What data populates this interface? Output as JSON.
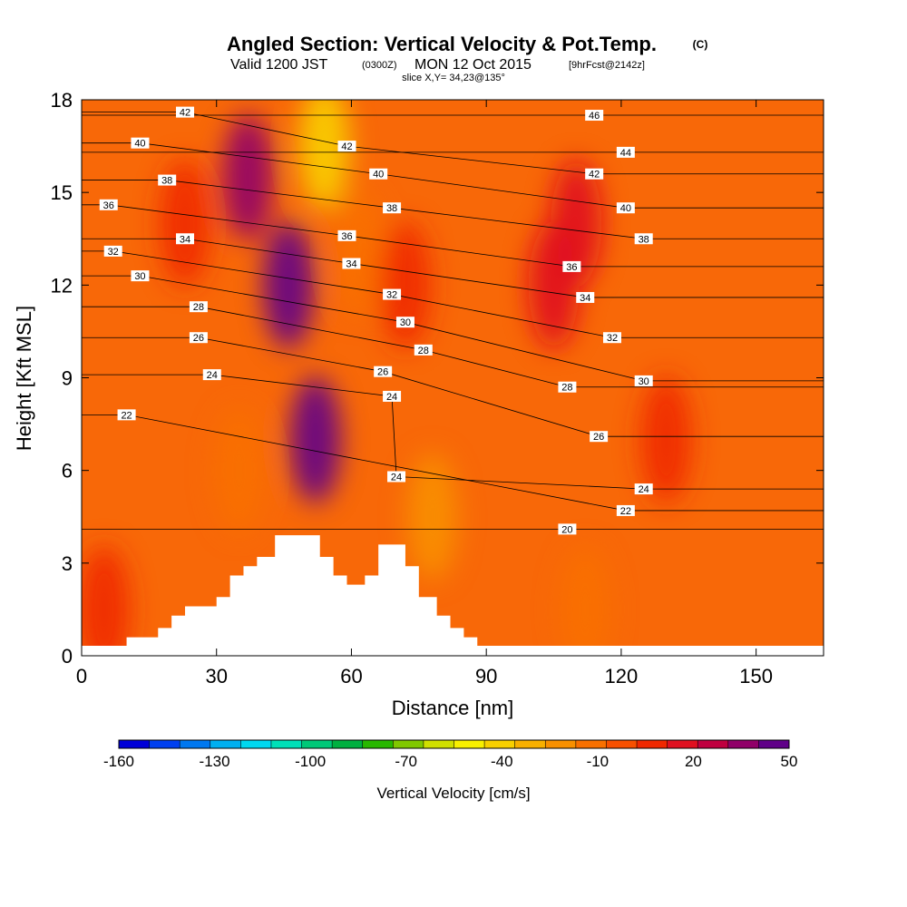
{
  "header": {
    "title": "Angled Section: Vertical Velocity & Pot.Temp.",
    "title_unit": "(C)",
    "valid_prefix": "Valid 1200 JST",
    "valid_utc": "(0300Z)",
    "valid_date": "MON 12 Oct 2015",
    "forecast": "[9hrFcst@2142z]",
    "slice": "slice X,Y= 34,23@135°"
  },
  "chart_data": {
    "type": "heatmap",
    "title": "Angled Section: Vertical Velocity & Pot.Temp. (C)",
    "xlabel": "Distance [nm]",
    "ylabel": "Height [Kft MSL]",
    "xlim": [
      0,
      165
    ],
    "ylim": [
      0,
      18
    ],
    "x_ticks": [
      0,
      30,
      60,
      90,
      120,
      150
    ],
    "y_ticks": [
      0,
      3,
      6,
      9,
      12,
      15,
      18
    ],
    "colorbar": {
      "label": "Vertical Velocity [cm/s]",
      "range": [
        -160,
        50
      ],
      "tick_labels": [
        "-160",
        "-130",
        "-100",
        "-70",
        "-40",
        "-10",
        "20",
        "50"
      ],
      "tick_values": [
        -160,
        -130,
        -100,
        -70,
        -40,
        -10,
        20,
        50
      ],
      "colors": [
        "#0000d8",
        "#0040f0",
        "#0078f0",
        "#00b0f0",
        "#00d8f0",
        "#00e0b8",
        "#00c878",
        "#00b040",
        "#28b800",
        "#80c800",
        "#d0e000",
        "#f8f000",
        "#f8d000",
        "#f8b000",
        "#f89000",
        "#f87000",
        "#f85000",
        "#f02800",
        "#e01020",
        "#c00040",
        "#900068",
        "#600088"
      ]
    },
    "terrain_nm_kft": [
      [
        0,
        0.3
      ],
      [
        10,
        0.3
      ],
      [
        10,
        0.6
      ],
      [
        17,
        0.6
      ],
      [
        17,
        0.9
      ],
      [
        20,
        0.9
      ],
      [
        20,
        1.3
      ],
      [
        23,
        1.3
      ],
      [
        23,
        1.6
      ],
      [
        30,
        1.6
      ],
      [
        30,
        1.9
      ],
      [
        33,
        1.9
      ],
      [
        33,
        2.6
      ],
      [
        36,
        2.6
      ],
      [
        36,
        2.9
      ],
      [
        39,
        2.9
      ],
      [
        39,
        3.2
      ],
      [
        43,
        3.2
      ],
      [
        43,
        3.9
      ],
      [
        53,
        3.9
      ],
      [
        53,
        3.2
      ],
      [
        56,
        3.2
      ],
      [
        56,
        2.6
      ],
      [
        59,
        2.6
      ],
      [
        59,
        2.3
      ],
      [
        63,
        2.3
      ],
      [
        63,
        2.6
      ],
      [
        66,
        2.6
      ],
      [
        66,
        3.6
      ],
      [
        72,
        3.6
      ],
      [
        72,
        2.9
      ],
      [
        75,
        2.9
      ],
      [
        75,
        1.9
      ],
      [
        79,
        1.9
      ],
      [
        79,
        1.3
      ],
      [
        82,
        1.3
      ],
      [
        82,
        0.9
      ],
      [
        85,
        0.9
      ],
      [
        85,
        0.6
      ],
      [
        88,
        0.6
      ],
      [
        88,
        0.3
      ],
      [
        165,
        0.3
      ]
    ],
    "velocity_anomalies": [
      {
        "x": 37,
        "y": 15.5,
        "value": 40
      },
      {
        "x": 46,
        "y": 12,
        "value": 50
      },
      {
        "x": 52,
        "y": 7,
        "value": 50
      },
      {
        "x": 54,
        "y": 16.5,
        "value": -40
      },
      {
        "x": 62,
        "y": 13,
        "value": -10
      },
      {
        "x": 72,
        "y": 12,
        "value": 10
      },
      {
        "x": 110,
        "y": 14,
        "value": 20
      },
      {
        "x": 105,
        "y": 12,
        "value": 20
      },
      {
        "x": 23,
        "y": 14,
        "value": 10
      },
      {
        "x": 35,
        "y": 6,
        "value": -10
      },
      {
        "x": 78,
        "y": 4.5,
        "value": -20
      },
      {
        "x": 130,
        "y": 7,
        "value": 10
      },
      {
        "x": 112,
        "y": 1.5,
        "value": -10
      },
      {
        "x": 5,
        "y": 1.5,
        "value": 10
      }
    ],
    "theta_contour_labels": [
      {
        "label": "42",
        "x": 23,
        "y": 17.6
      },
      {
        "label": "40",
        "x": 13,
        "y": 16.6
      },
      {
        "label": "38",
        "x": 19,
        "y": 15.4
      },
      {
        "label": "36",
        "x": 6,
        "y": 14.6
      },
      {
        "label": "34",
        "x": 23,
        "y": 13.5
      },
      {
        "label": "32",
        "x": 7,
        "y": 13.1
      },
      {
        "label": "30",
        "x": 13,
        "y": 12.3
      },
      {
        "label": "28",
        "x": 26,
        "y": 11.3
      },
      {
        "label": "26",
        "x": 26,
        "y": 10.3
      },
      {
        "label": "24",
        "x": 29,
        "y": 9.1
      },
      {
        "label": "22",
        "x": 10,
        "y": 7.8
      },
      {
        "label": "42",
        "x": 59,
        "y": 16.5
      },
      {
        "label": "40",
        "x": 66,
        "y": 15.6
      },
      {
        "label": "38",
        "x": 69,
        "y": 14.5
      },
      {
        "label": "36",
        "x": 59,
        "y": 13.6
      },
      {
        "label": "34",
        "x": 60,
        "y": 12.7
      },
      {
        "label": "32",
        "x": 69,
        "y": 11.7
      },
      {
        "label": "30",
        "x": 72,
        "y": 10.8
      },
      {
        "label": "28",
        "x": 76,
        "y": 9.9
      },
      {
        "label": "26",
        "x": 67,
        "y": 9.2
      },
      {
        "label": "24",
        "x": 69,
        "y": 8.4
      },
      {
        "label": "24",
        "x": 70,
        "y": 5.8
      },
      {
        "label": "46",
        "x": 114,
        "y": 17.5
      },
      {
        "label": "44",
        "x": 121,
        "y": 16.3
      },
      {
        "label": "42",
        "x": 114,
        "y": 15.6
      },
      {
        "label": "40",
        "x": 121,
        "y": 14.5
      },
      {
        "label": "38",
        "x": 125,
        "y": 13.5
      },
      {
        "label": "36",
        "x": 109,
        "y": 12.6
      },
      {
        "label": "34",
        "x": 112,
        "y": 11.6
      },
      {
        "label": "32",
        "x": 118,
        "y": 10.3
      },
      {
        "label": "30",
        "x": 125,
        "y": 8.9
      },
      {
        "label": "28",
        "x": 108,
        "y": 8.7
      },
      {
        "label": "26",
        "x": 115,
        "y": 7.1
      },
      {
        "label": "24",
        "x": 125,
        "y": 5.4
      },
      {
        "label": "22",
        "x": 121,
        "y": 4.7
      },
      {
        "label": "20",
        "x": 108,
        "y": 4.1
      }
    ]
  }
}
